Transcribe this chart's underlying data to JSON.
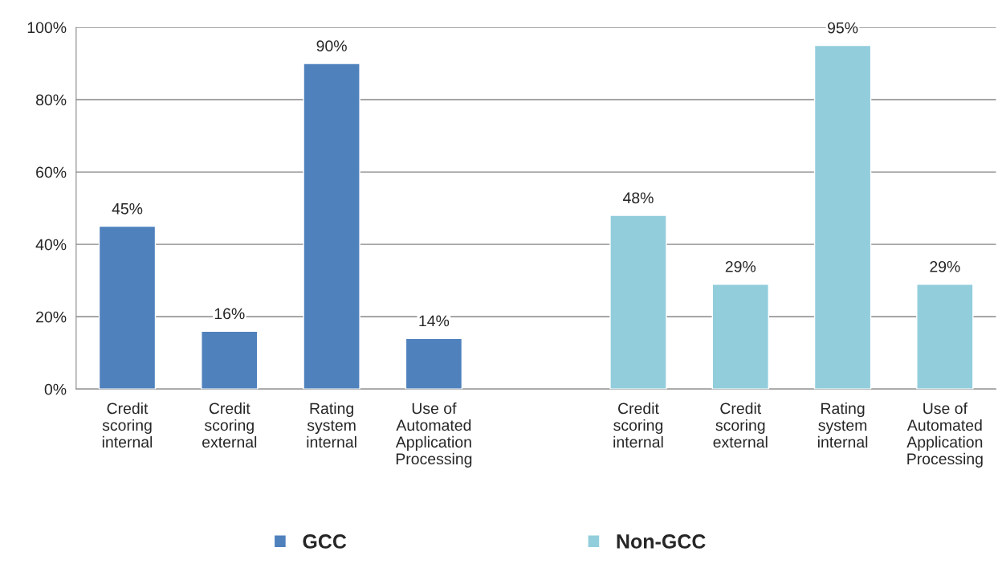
{
  "chart_data": {
    "type": "bar",
    "categories": [
      "Credit\nscoring\ninternal",
      "Credit\nscoring\nexternal",
      "Rating\nsystem\ninternal",
      "Use of\nAutomated\nApplication\nProcessing",
      null,
      "Credit\nscoring\ninternal",
      "Credit\nscoring\nexternal",
      "Rating\nsystem\ninternal",
      "Use of\nAutomated\nApplication\nProcessing"
    ],
    "series": [
      {
        "name": "GCC",
        "color": "#4f81bd",
        "values": [
          45,
          16,
          90,
          14,
          null,
          null,
          null,
          null,
          null
        ],
        "value_labels": [
          "45%",
          "16%",
          "90%",
          "14%",
          null,
          null,
          null,
          null,
          null
        ]
      },
      {
        "name": "Non-GCC",
        "color": "#92cddc",
        "values": [
          null,
          null,
          null,
          null,
          null,
          48,
          29,
          95,
          29
        ],
        "value_labels": [
          null,
          null,
          null,
          null,
          null,
          "48%",
          "29%",
          "95%",
          "29%"
        ]
      }
    ],
    "ylim": [
      0,
      100
    ],
    "yticks": [
      {
        "value": 0,
        "label": "0%"
      },
      {
        "value": 20,
        "label": "20%"
      },
      {
        "value": 40,
        "label": "40%"
      },
      {
        "value": 60,
        "label": "60%"
      },
      {
        "value": 80,
        "label": "80%"
      },
      {
        "value": 100,
        "label": "100%"
      }
    ],
    "grid": "y",
    "legend": "bottom"
  }
}
